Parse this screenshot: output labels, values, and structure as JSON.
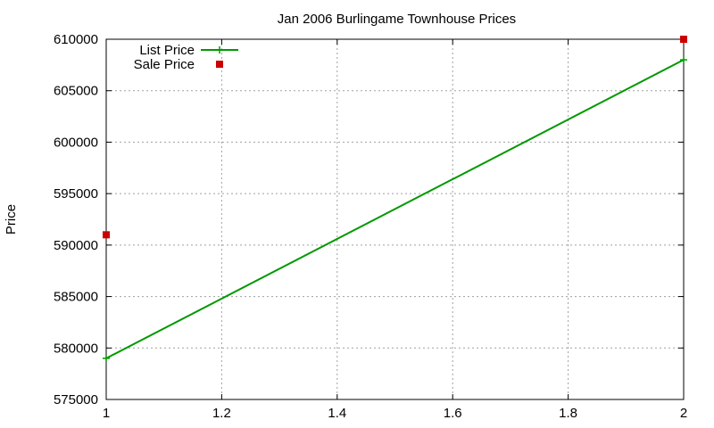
{
  "chart_data": {
    "type": "line",
    "title": "Jan 2006 Burlingame Townhouse Prices",
    "xlabel": "",
    "ylabel": "Price",
    "xlim": [
      1,
      2
    ],
    "ylim": [
      575000,
      610000
    ],
    "xticks": [
      1,
      1.2,
      1.4,
      1.6,
      1.8,
      2
    ],
    "xtick_labels": [
      "1",
      "1.2",
      "1.4",
      "1.6",
      "1.8",
      "2"
    ],
    "yticks": [
      575000,
      580000,
      585000,
      590000,
      595000,
      600000,
      605000,
      610000
    ],
    "ytick_labels": [
      "575000",
      "580000",
      "585000",
      "590000",
      "595000",
      "600000",
      "605000",
      "610000"
    ],
    "grid": true,
    "legend_position": "top-left",
    "series": [
      {
        "name": "List Price",
        "style": "line-with-plus-markers",
        "color": "#009900",
        "x": [
          1,
          2
        ],
        "y": [
          579000,
          608000
        ]
      },
      {
        "name": "Sale Price",
        "style": "square-points",
        "color": "#cc0000",
        "x": [
          1,
          2
        ],
        "y": [
          591000,
          610000
        ]
      }
    ]
  }
}
